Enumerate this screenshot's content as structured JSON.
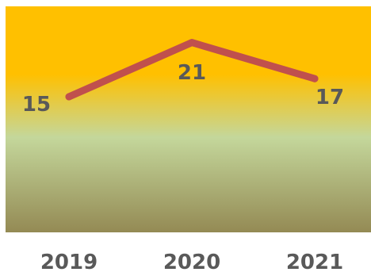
{
  "chart_data": {
    "type": "line",
    "categories": [
      "2019",
      "2020",
      "2021"
    ],
    "series": [
      {
        "values": [
          15,
          21,
          17
        ],
        "color": "#C0504D"
      }
    ],
    "data_labels": [
      "15",
      "21",
      "17"
    ],
    "ylim": [
      0,
      25
    ],
    "grid": false,
    "legend": "none",
    "background_gradient": [
      "#FFC000",
      "#FFC000",
      "#C4D79B",
      "#948A54"
    ]
  }
}
